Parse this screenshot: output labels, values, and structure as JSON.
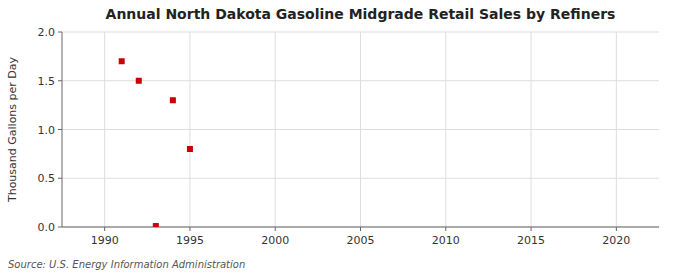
{
  "chart_data": {
    "type": "scatter",
    "title": "Annual North Dakota Gasoline Midgrade Retail Sales by Refiners",
    "y_label": "Thousand Gallons per Day",
    "source": "Source: U.S. Energy Information Administration",
    "x": [
      1991,
      1992,
      1993,
      1994,
      1995
    ],
    "values": [
      1.7,
      1.5,
      0.01,
      1.3,
      0.8
    ],
    "xlim": [
      1987.5,
      2022.5
    ],
    "ylim": [
      0.0,
      2.0
    ],
    "xticks": [
      1990,
      1995,
      2000,
      2005,
      2010,
      2015,
      2020
    ],
    "yticks": [
      {
        "value": 0,
        "label": "0.0"
      },
      0.5,
      {
        "value": 1,
        "label": "1.0"
      },
      1.5,
      {
        "value": 2,
        "label": "2.0"
      }
    ],
    "color": "#cc0000",
    "marker": "square",
    "grid": true
  }
}
